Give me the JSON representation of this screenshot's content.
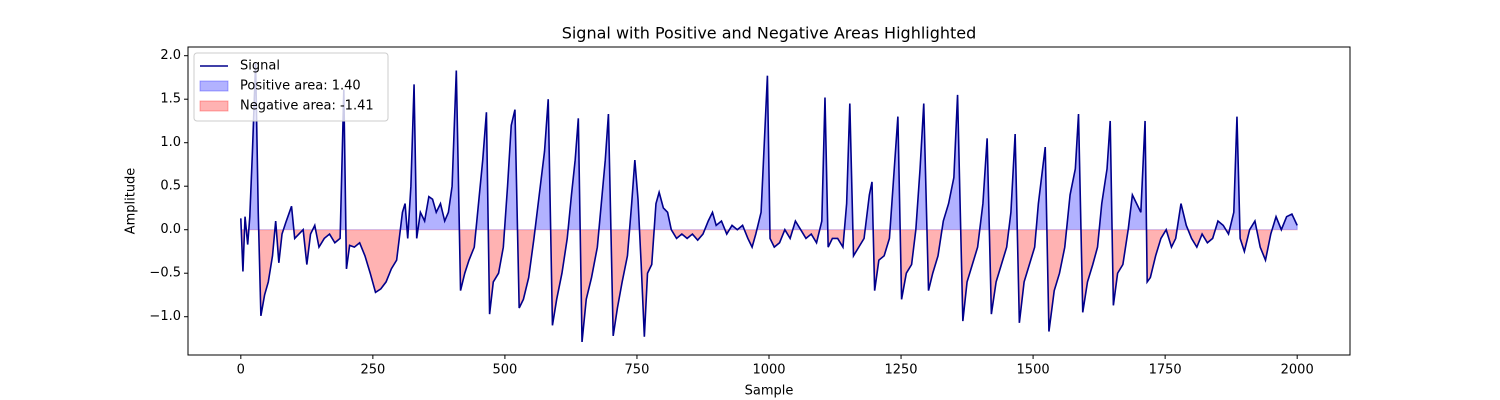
{
  "chart_data": {
    "type": "line",
    "title": "Signal with Positive and Negative Areas Highlighted",
    "xlabel": "Sample",
    "ylabel": "Amplitude",
    "x": [
      0,
      4,
      8,
      13,
      17,
      22,
      28,
      33,
      38,
      45,
      52,
      60,
      66,
      72,
      78,
      85,
      92,
      96,
      102,
      110,
      118,
      125,
      132,
      140,
      148,
      158,
      168,
      178,
      188,
      195,
      200,
      206,
      215,
      225,
      235,
      245,
      255,
      265,
      275,
      285,
      295,
      300,
      306,
      311,
      316,
      322,
      328,
      333,
      340,
      348,
      356,
      363,
      370,
      378,
      386,
      393,
      400,
      408,
      416,
      424,
      432,
      442,
      450,
      458,
      465,
      471,
      478,
      488,
      497,
      505,
      512,
      519,
      527,
      535,
      545,
      555,
      565,
      575,
      582,
      590,
      598,
      608,
      618,
      626,
      633,
      639,
      646,
      654,
      664,
      675,
      684,
      690,
      696,
      705,
      713,
      722,
      732,
      740,
      746,
      752,
      758,
      764,
      770,
      778,
      786,
      792,
      800,
      808,
      815,
      825,
      835,
      845,
      855,
      865,
      875,
      885,
      893,
      900,
      910,
      920,
      930,
      940,
      950,
      960,
      968,
      975,
      985,
      997,
      1002,
      1010,
      1020,
      1030,
      1040,
      1050,
      1060,
      1070,
      1080,
      1090,
      1100,
      1106,
      1112,
      1120,
      1130,
      1140,
      1147,
      1153,
      1160,
      1170,
      1180,
      1190,
      1195,
      1200,
      1208,
      1218,
      1228,
      1236,
      1244,
      1251,
      1260,
      1270,
      1278,
      1286,
      1293,
      1302,
      1310,
      1320,
      1330,
      1340,
      1350,
      1357,
      1367,
      1375,
      1385,
      1395,
      1405,
      1413,
      1421,
      1430,
      1440,
      1450,
      1458,
      1466,
      1474,
      1483,
      1493,
      1503,
      1510,
      1523,
      1530,
      1540,
      1550,
      1560,
      1570,
      1580,
      1586,
      1594,
      1603,
      1613,
      1622,
      1630,
      1640,
      1646,
      1652,
      1660,
      1670,
      1680,
      1688,
      1696,
      1704,
      1712,
      1716,
      1722,
      1732,
      1742,
      1752,
      1762,
      1770,
      1780,
      1790,
      1800,
      1810,
      1820,
      1830,
      1840,
      1850,
      1860,
      1870,
      1880,
      1886,
      1892,
      1900,
      1910,
      1920,
      1930,
      1940,
      1950,
      1960,
      1970,
      1980,
      1990,
      2000
    ],
    "series": [
      {
        "name": "Signal",
        "color": "#00008b",
        "values": [
          0.13,
          -0.48,
          0.15,
          -0.17,
          0.15,
          0.9,
          1.92,
          0.2,
          -0.99,
          -0.75,
          -0.6,
          -0.3,
          0.1,
          -0.38,
          -0.05,
          0.08,
          0.2,
          0.27,
          -0.1,
          -0.05,
          0.0,
          -0.4,
          -0.05,
          0.05,
          -0.2,
          -0.1,
          -0.05,
          -0.15,
          -0.1,
          1.61,
          -0.45,
          -0.18,
          -0.2,
          -0.15,
          -0.3,
          -0.5,
          -0.72,
          -0.68,
          -0.6,
          -0.45,
          -0.35,
          -0.1,
          0.2,
          0.3,
          -0.1,
          0.5,
          1.67,
          -0.1,
          0.2,
          0.1,
          0.38,
          0.35,
          0.2,
          0.3,
          0.1,
          0.2,
          0.5,
          1.83,
          -0.7,
          -0.5,
          -0.35,
          -0.2,
          0.3,
          0.8,
          1.35,
          -0.97,
          -0.6,
          -0.5,
          -0.2,
          0.5,
          1.2,
          1.38,
          -0.9,
          -0.8,
          -0.55,
          -0.1,
          0.4,
          0.9,
          1.5,
          -1.1,
          -0.8,
          -0.5,
          -0.1,
          0.4,
          0.8,
          1.28,
          -1.29,
          -0.8,
          -0.55,
          -0.2,
          0.4,
          0.8,
          1.33,
          -1.22,
          -0.9,
          -0.6,
          -0.3,
          0.3,
          0.8,
          0.35,
          -0.4,
          -1.23,
          -0.5,
          -0.4,
          0.3,
          0.43,
          0.25,
          0.2,
          0.0,
          -0.1,
          -0.05,
          -0.1,
          -0.05,
          -0.12,
          -0.05,
          0.1,
          0.2,
          0.05,
          0.1,
          -0.05,
          0.05,
          0.0,
          0.05,
          -0.1,
          -0.2,
          -0.05,
          0.2,
          1.77,
          -0.1,
          -0.2,
          -0.15,
          0.0,
          -0.1,
          0.1,
          0.0,
          -0.1,
          -0.05,
          -0.15,
          0.1,
          1.52,
          -0.2,
          -0.1,
          -0.1,
          -0.2,
          0.3,
          1.45,
          -0.3,
          -0.2,
          -0.1,
          0.4,
          0.55,
          -0.7,
          -0.35,
          -0.3,
          -0.1,
          0.6,
          1.3,
          -0.8,
          -0.5,
          -0.4,
          0.0,
          0.7,
          1.45,
          -0.7,
          -0.5,
          -0.3,
          0.1,
          0.3,
          0.6,
          1.55,
          -1.05,
          -0.6,
          -0.4,
          -0.2,
          0.3,
          1.05,
          -0.97,
          -0.6,
          -0.4,
          -0.2,
          0.2,
          1.1,
          -1.07,
          -0.6,
          -0.4,
          -0.2,
          0.3,
          0.95,
          -1.17,
          -0.7,
          -0.5,
          -0.2,
          0.4,
          0.7,
          1.33,
          -0.95,
          -0.6,
          -0.4,
          -0.2,
          0.3,
          0.7,
          1.25,
          -0.87,
          -0.5,
          -0.4,
          0.0,
          0.4,
          0.3,
          0.2,
          1.25,
          -0.6,
          -0.55,
          -0.3,
          -0.1,
          0.0,
          -0.2,
          -0.1,
          0.3,
          0.05,
          -0.1,
          -0.2,
          -0.05,
          -0.15,
          -0.1,
          0.1,
          0.05,
          -0.05,
          0.2,
          1.3,
          -0.1,
          -0.25,
          0.0,
          0.1,
          -0.2,
          -0.35,
          -0.05,
          0.15,
          0.0,
          0.15,
          0.18,
          0.05
        ]
      }
    ],
    "areas": [
      {
        "name": "Positive area: 1.40",
        "color": "blue",
        "sign": "positive"
      },
      {
        "name": "Negative area: -1.41",
        "color": "red",
        "sign": "negative"
      }
    ],
    "xlim": [
      -100,
      2100
    ],
    "ylim": [
      -1.44,
      2.1
    ],
    "xticks": [
      0,
      250,
      500,
      750,
      1000,
      1250,
      1500,
      1750,
      2000
    ],
    "yticks": [
      {
        "value": -1.0,
        "label": "−1.0"
      },
      {
        "value": -0.5,
        "label": "−0.5"
      },
      {
        "value": 0.0,
        "label": "0.0"
      },
      {
        "value": 0.5,
        "label": "0.5"
      },
      {
        "value": 1.0,
        "label": "1.0"
      },
      {
        "value": 1.5,
        "label": "1.5"
      },
      {
        "value": 2.0,
        "label": "2.0"
      }
    ],
    "legend": "upper left"
  }
}
